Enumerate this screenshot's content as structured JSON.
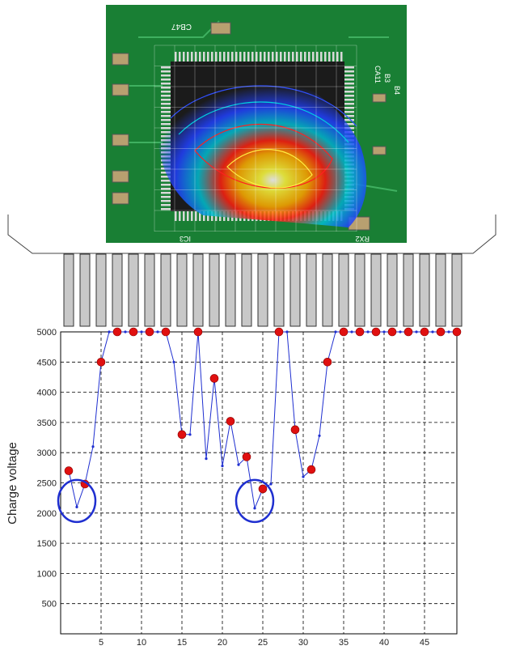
{
  "photo": {
    "labels": [
      "CB47",
      "CA11",
      "B3",
      "B4",
      "IC3",
      "RX2"
    ]
  },
  "chart_data": {
    "type": "line",
    "title": "",
    "xlabel": "",
    "ylabel": "Charge voltage",
    "xlim": [
      0,
      49
    ],
    "ylim": [
      0,
      5000
    ],
    "xticks": [
      5,
      10,
      15,
      20,
      25,
      30,
      35,
      40,
      45
    ],
    "yticks": [
      500,
      1000,
      1500,
      2000,
      2500,
      3000,
      3500,
      4000,
      4500,
      5000
    ],
    "grid": true,
    "series": [
      {
        "name": "",
        "color": "#1f2fd0",
        "x": [
          1,
          2,
          3,
          4,
          5,
          6,
          7,
          8,
          9,
          10,
          11,
          12,
          13,
          14,
          15,
          16,
          17,
          18,
          19,
          20,
          21,
          22,
          23,
          24,
          25,
          26,
          27,
          28,
          29,
          30,
          31,
          32,
          33,
          34,
          35,
          36,
          37,
          38,
          39,
          40,
          41,
          42,
          43,
          44,
          45,
          46,
          47,
          48,
          49
        ],
        "values": [
          2700,
          2100,
          2480,
          3100,
          4500,
          5000,
          5000,
          5000,
          5000,
          5000,
          5000,
          5000,
          5000,
          4500,
          3300,
          3300,
          5000,
          2900,
          4230,
          2780,
          3520,
          2800,
          2930,
          2080,
          2400,
          2480,
          5000,
          5000,
          3380,
          2600,
          2720,
          3280,
          4500,
          5000,
          5000,
          5000,
          5000,
          5000,
          5000,
          5000,
          5000,
          5000,
          5000,
          5000,
          5000,
          5000,
          5000,
          5000,
          5000
        ]
      }
    ],
    "highlight_points": {
      "x": [
        1,
        3,
        5,
        7,
        9,
        11,
        13,
        15,
        17,
        19,
        21,
        23,
        25,
        27,
        29,
        31,
        33,
        35,
        37,
        39,
        41,
        43,
        45,
        47,
        49
      ],
      "values": [
        2700,
        2480,
        4500,
        5000,
        5000,
        5000,
        5000,
        3300,
        5000,
        4230,
        3520,
        2930,
        2400,
        5000,
        3380,
        2720,
        4500,
        5000,
        5000,
        5000,
        5000,
        5000,
        5000,
        5000,
        5000
      ],
      "color": "#e01010"
    },
    "annotations": [
      {
        "type": "circle",
        "x": 2,
        "y": 2200,
        "color": "#1f2fd0"
      },
      {
        "type": "circle",
        "x": 24,
        "y": 2200,
        "color": "#1f2fd0"
      }
    ],
    "pins": {
      "count": 25
    }
  }
}
